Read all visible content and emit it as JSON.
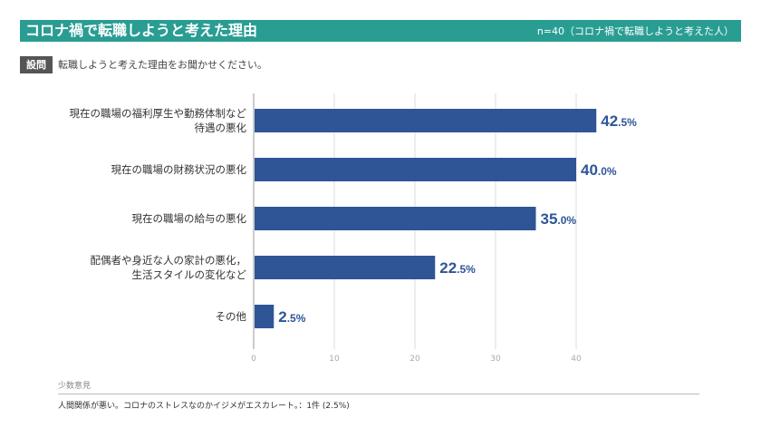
{
  "header": {
    "title": "コロナ禍で転職しようと考えた理由",
    "sample": "n=40（コロナ禍で転職しようと考えた人）"
  },
  "question": {
    "tag": "設問",
    "text": "転職しようと考えた理由をお聞かせください。"
  },
  "chart_data": {
    "type": "bar",
    "orientation": "horizontal",
    "categories": [
      [
        "現在の職場の福利厚生や勤務体制など",
        "待遇の悪化"
      ],
      [
        "現在の職場の財務状況の悪化"
      ],
      [
        "現在の職場の給与の悪化"
      ],
      [
        "配偶者や身近な人の家計の悪化，",
        "生活スタイルの変化など"
      ],
      [
        "その他"
      ]
    ],
    "values": [
      42.5,
      40.0,
      35.0,
      22.5,
      2.5
    ],
    "value_labels": [
      {
        "main": "42",
        "decimal": ".5%"
      },
      {
        "main": "40",
        "decimal": ".0%"
      },
      {
        "main": "35",
        "decimal": ".0%"
      },
      {
        "main": "22",
        "decimal": ".5%"
      },
      {
        "main": "2",
        "decimal": ".5%"
      }
    ],
    "xlim": [
      0,
      43
    ],
    "xticks": [
      0,
      10,
      20,
      30,
      40
    ],
    "grid": true,
    "colors": {
      "bar": "#2f5597",
      "grid": "#dddddd",
      "axis": "#999999",
      "label": "#2f5597"
    }
  },
  "minority": {
    "title": "少数意見",
    "text": "人間関係が悪い。コロナのストレスなのかイジメがエスカレート。：1件 (2.5%)"
  }
}
